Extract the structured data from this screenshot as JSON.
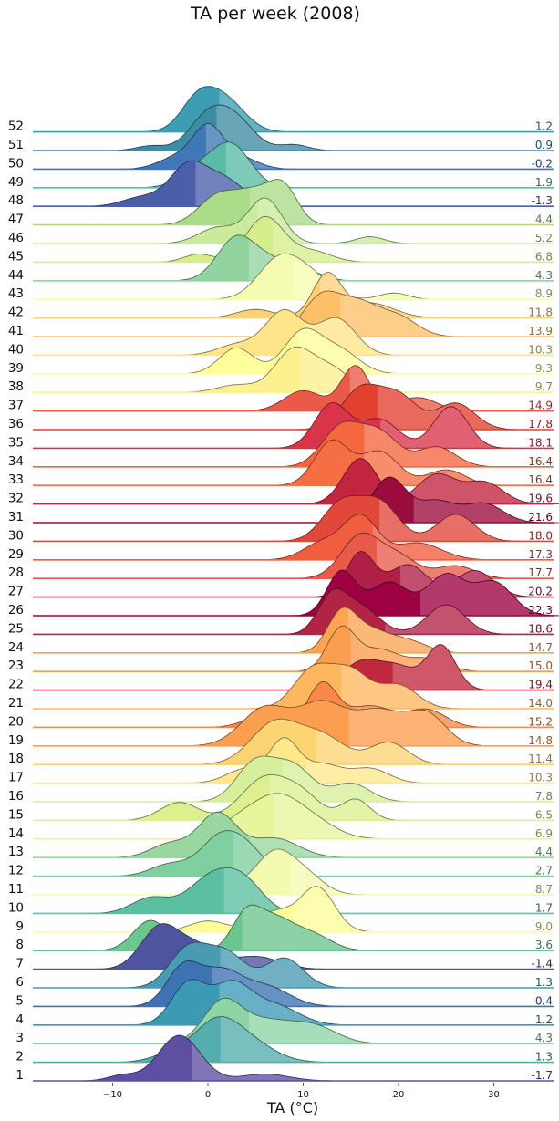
{
  "chart_data": {
    "type": "ridgeline",
    "title": "TA per week (2008)",
    "xlabel": "TA (°C)",
    "ylabel": "",
    "xlim": [
      -18,
      36
    ],
    "xticks": [
      -10,
      0,
      10,
      20,
      30
    ],
    "grid": false,
    "legend": "none",
    "series": [
      {
        "week": "1",
        "mean": -1.7,
        "color": "#5e4fa2",
        "peaks": [
          [
            -3,
            1.0,
            2.2
          ],
          [
            -9,
            0.12,
            1.5
          ],
          [
            6,
            0.15,
            2.5
          ]
        ]
      },
      {
        "week": "2",
        "mean": 1.3,
        "color": "#54aead",
        "peaks": [
          [
            1,
            0.9,
            2.5
          ],
          [
            5,
            0.3,
            2.5
          ],
          [
            -4,
            0.15,
            2.0
          ]
        ]
      },
      {
        "week": "3",
        "mean": 4.3,
        "color": "#8fd4a4",
        "peaks": [
          [
            1.5,
            0.7,
            2.0
          ],
          [
            6,
            0.35,
            2.5
          ],
          [
            11,
            0.3,
            2.5
          ]
        ]
      },
      {
        "week": "4",
        "mean": 1.2,
        "color": "#3d9ab5",
        "peaks": [
          [
            -2,
            0.75,
            1.8
          ],
          [
            2.5,
            0.7,
            2.0
          ],
          [
            7,
            0.35,
            2.5
          ]
        ]
      },
      {
        "week": "5",
        "mean": 0.4,
        "color": "#3e73b3",
        "peaks": [
          [
            -2.5,
            0.7,
            1.8
          ],
          [
            1.5,
            0.55,
            2.0
          ],
          [
            6,
            0.35,
            2.5
          ]
        ]
      },
      {
        "week": "6",
        "mean": 1.3,
        "color": "#4a9ab2",
        "peaks": [
          [
            -2,
            0.6,
            2.0
          ],
          [
            2,
            0.5,
            2.0
          ],
          [
            8,
            0.45,
            2.0
          ]
        ]
      },
      {
        "week": "7",
        "mean": -1.4,
        "color": "#4e549d",
        "peaks": [
          [
            -5,
            1.0,
            2.0
          ],
          [
            -1,
            0.5,
            2.0
          ],
          [
            5,
            0.3,
            2.5
          ]
        ]
      },
      {
        "week": "8",
        "mean": 3.6,
        "color": "#6ec68f",
        "peaks": [
          [
            -6,
            0.5,
            1.8
          ],
          [
            4,
            0.55,
            1.5
          ],
          [
            7,
            0.5,
            2.0
          ],
          [
            11,
            0.25,
            2.0
          ]
        ]
      },
      {
        "week": "9",
        "mean": 9.0,
        "color": "#fdfd9a",
        "peaks": [
          [
            0,
            0.25,
            2.0
          ],
          [
            7,
            0.45,
            2.0
          ],
          [
            11.5,
            1.0,
            1.8
          ]
        ]
      },
      {
        "week": "10",
        "mean": 1.7,
        "color": "#5dbfa1",
        "peaks": [
          [
            0.5,
            0.85,
            2.5
          ],
          [
            4,
            0.55,
            2.0
          ],
          [
            -6,
            0.35,
            2.0
          ]
        ]
      },
      {
        "week": "11",
        "mean": 8.7,
        "color": "#f3fab0",
        "peaks": [
          [
            7,
            0.9,
            1.8
          ],
          [
            10,
            0.55,
            2.0
          ],
          [
            4,
            0.25,
            2.0
          ]
        ]
      },
      {
        "week": "12",
        "mean": 2.7,
        "color": "#7fcf9f",
        "peaks": [
          [
            1,
            0.7,
            2.0
          ],
          [
            4,
            0.55,
            2.0
          ],
          [
            -4,
            0.25,
            2.0
          ]
        ]
      },
      {
        "week": "13",
        "mean": 4.4,
        "color": "#9ad69f",
        "peaks": [
          [
            1,
            0.8,
            2.0
          ],
          [
            7,
            0.35,
            2.5
          ],
          [
            -4,
            0.25,
            2.0
          ]
        ]
      },
      {
        "week": "14",
        "mean": 6.9,
        "color": "#e7f59c",
        "peaks": [
          [
            7,
            0.85,
            2.5
          ],
          [
            11,
            0.35,
            2.5
          ],
          [
            3,
            0.3,
            2.0
          ]
        ]
      },
      {
        "week": "15",
        "mean": 6.5,
        "color": "#dcf08f",
        "peaks": [
          [
            6,
            0.7,
            2.5
          ],
          [
            -3,
            0.3,
            2.0
          ],
          [
            15.5,
            0.35,
            1.5
          ],
          [
            10,
            0.35,
            2.0
          ]
        ]
      },
      {
        "week": "16",
        "mean": 7.8,
        "color": "#d7ef9a",
        "peaks": [
          [
            5,
            0.75,
            2.0
          ],
          [
            9,
            0.65,
            2.0
          ],
          [
            15,
            0.35,
            2.0
          ]
        ]
      },
      {
        "week": "17",
        "mean": 10.3,
        "color": "#fde88c",
        "peaks": [
          [
            8,
            1.0,
            1.5
          ],
          [
            4,
            0.35,
            2.0
          ],
          [
            12,
            0.45,
            2.0
          ],
          [
            17,
            0.35,
            2.0
          ]
        ]
      },
      {
        "week": "18",
        "mean": 11.4,
        "color": "#fdd474",
        "peaks": [
          [
            7,
            0.75,
            2.5
          ],
          [
            12,
            0.5,
            2.5
          ],
          [
            19,
            0.4,
            2.0
          ]
        ]
      },
      {
        "week": "19",
        "mean": 14.8,
        "color": "#fc9e4f",
        "peaks": [
          [
            6,
            0.5,
            2.5
          ],
          [
            12,
            0.55,
            2.5
          ],
          [
            18,
            0.45,
            2.5
          ],
          [
            23,
            0.4,
            2.0
          ]
        ]
      },
      {
        "week": "20",
        "mean": 15.2,
        "color": "#f88948",
        "peaks": [
          [
            12,
            1.0,
            1.5
          ],
          [
            6,
            0.3,
            2.0
          ],
          [
            17,
            0.5,
            2.5
          ],
          [
            23,
            0.4,
            2.0
          ]
        ]
      },
      {
        "week": "21",
        "mean": 14.0,
        "color": "#fdb75f",
        "peaks": [
          [
            11,
            0.75,
            2.0
          ],
          [
            15,
            0.7,
            2.0
          ],
          [
            20,
            0.45,
            2.0
          ]
        ]
      },
      {
        "week": "22",
        "mean": 19.4,
        "color": "#c0283f",
        "peaks": [
          [
            16,
            0.55,
            2.0
          ],
          [
            20,
            0.45,
            2.0
          ],
          [
            24.5,
            0.9,
            1.5
          ]
        ]
      },
      {
        "week": "23",
        "mean": 15.0,
        "color": "#fb9d4e",
        "peaks": [
          [
            14,
            1.0,
            1.5
          ],
          [
            18,
            0.5,
            2.0
          ],
          [
            23,
            0.3,
            2.0
          ]
        ]
      },
      {
        "week": "24",
        "mean": 14.7,
        "color": "#fba452",
        "peaks": [
          [
            14,
            1.0,
            1.5
          ],
          [
            17,
            0.55,
            2.0
          ],
          [
            21,
            0.3,
            2.0
          ]
        ]
      },
      {
        "week": "25",
        "mean": 18.6,
        "color": "#b32346",
        "peaks": [
          [
            13,
            0.6,
            1.5
          ],
          [
            16,
            0.45,
            2.0
          ],
          [
            25,
            0.5,
            2.0
          ]
        ]
      },
      {
        "week": "26",
        "mean": 22.3,
        "color": "#9e0142",
        "peaks": [
          [
            14,
            0.6,
            1.5
          ],
          [
            19,
            0.45,
            2.0
          ],
          [
            25,
            0.55,
            2.0
          ],
          [
            30,
            0.45,
            2.0
          ]
        ]
      },
      {
        "week": "27",
        "mean": 20.2,
        "color": "#b01f48",
        "peaks": [
          [
            16,
            0.75,
            1.5
          ],
          [
            21,
            0.55,
            2.0
          ],
          [
            28,
            0.45,
            2.0
          ]
        ]
      },
      {
        "week": "28",
        "mean": 17.7,
        "color": "#e85b4b",
        "peaks": [
          [
            16,
            1.0,
            2.0
          ],
          [
            20,
            0.5,
            2.0
          ],
          [
            26,
            0.3,
            2.0
          ]
        ]
      },
      {
        "week": "29",
        "mean": 17.3,
        "color": "#f15d3f",
        "peaks": [
          [
            16,
            1.0,
            1.8
          ],
          [
            12,
            0.4,
            2.0
          ],
          [
            22,
            0.4,
            2.5
          ]
        ]
      },
      {
        "week": "30",
        "mean": 18.0,
        "color": "#e2473c",
        "peaks": [
          [
            14,
            0.7,
            2.0
          ],
          [
            18,
            0.7,
            2.0
          ],
          [
            26,
            0.5,
            2.0
          ]
        ]
      },
      {
        "week": "31",
        "mean": 21.6,
        "color": "#9a0b3e",
        "peaks": [
          [
            19,
            0.95,
            1.8
          ],
          [
            24,
            0.45,
            2.0
          ],
          [
            29,
            0.4,
            2.0
          ]
        ]
      },
      {
        "week": "32",
        "mean": 19.6,
        "color": "#c3243f",
        "peaks": [
          [
            16,
            0.85,
            1.8
          ],
          [
            24,
            0.55,
            2.0
          ],
          [
            29,
            0.4,
            2.0
          ]
        ]
      },
      {
        "week": "33",
        "mean": 16.4,
        "color": "#f56e44",
        "peaks": [
          [
            13,
            0.85,
            1.8
          ],
          [
            18,
            0.65,
            2.0
          ],
          [
            25,
            0.3,
            2.0
          ]
        ]
      },
      {
        "week": "34",
        "mean": 16.4,
        "color": "#f4673f",
        "peaks": [
          [
            14,
            0.6,
            2.0
          ],
          [
            18,
            0.5,
            2.0
          ],
          [
            24,
            0.3,
            2.0
          ]
        ]
      },
      {
        "week": "35",
        "mean": 18.1,
        "color": "#d9344a",
        "peaks": [
          [
            13,
            0.85,
            1.8
          ],
          [
            18,
            0.55,
            2.0
          ],
          [
            25.5,
            0.8,
            1.8
          ]
        ]
      },
      {
        "week": "36",
        "mean": 17.8,
        "color": "#e3412f",
        "peaks": [
          [
            16,
            0.6,
            2.0
          ],
          [
            20,
            0.5,
            2.0
          ],
          [
            26,
            0.4,
            2.0
          ]
        ]
      },
      {
        "week": "37",
        "mean": 14.9,
        "color": "#e95b48",
        "peaks": [
          [
            15.5,
            1.0,
            1.5
          ],
          [
            10,
            0.45,
            2.0
          ],
          [
            22,
            0.3,
            2.0
          ]
        ]
      },
      {
        "week": "38",
        "mean": 9.7,
        "color": "#fdf08f",
        "peaks": [
          [
            9,
            0.85,
            2.0
          ],
          [
            13,
            0.45,
            2.0
          ],
          [
            3,
            0.15,
            2.0
          ]
        ]
      },
      {
        "week": "39",
        "mean": 9.3,
        "color": "#fefe9b",
        "peaks": [
          [
            3,
            0.55,
            1.8
          ],
          [
            10,
            0.9,
            2.0
          ],
          [
            14,
            0.45,
            2.0
          ]
        ]
      },
      {
        "week": "40",
        "mean": 10.3,
        "color": "#fee58a",
        "peaks": [
          [
            8,
            0.85,
            2.0
          ],
          [
            13.5,
            0.7,
            2.0
          ],
          [
            3,
            0.2,
            2.0
          ]
        ]
      },
      {
        "week": "41",
        "mean": 13.9,
        "color": "#fdc068",
        "peaks": [
          [
            12,
            0.75,
            2.0
          ],
          [
            16,
            0.55,
            2.0
          ],
          [
            20,
            0.35,
            2.0
          ]
        ]
      },
      {
        "week": "42",
        "mean": 11.8,
        "color": "#fed07c",
        "peaks": [
          [
            12.5,
            1.0,
            1.5
          ],
          [
            5,
            0.2,
            2.0
          ],
          [
            17,
            0.35,
            2.5
          ]
        ]
      },
      {
        "week": "43",
        "mean": 8.9,
        "color": "#f5fbb0",
        "peaks": [
          [
            7.5,
            0.95,
            2.2
          ],
          [
            11,
            0.45,
            2.0
          ],
          [
            19.5,
            0.15,
            1.5
          ]
        ]
      },
      {
        "week": "44",
        "mean": 4.3,
        "color": "#92d3a0",
        "peaks": [
          [
            3,
            0.95,
            2.0
          ],
          [
            7,
            0.4,
            2.0
          ],
          [
            11,
            0.15,
            1.5
          ]
        ]
      },
      {
        "week": "45",
        "mean": 6.8,
        "color": "#d5ee8b",
        "peaks": [
          [
            6,
            0.85,
            2.0
          ],
          [
            -1,
            0.15,
            1.5
          ],
          [
            11,
            0.2,
            2.0
          ]
        ]
      },
      {
        "week": "46",
        "mean": 5.2,
        "color": "#c9eb9b",
        "peaks": [
          [
            6,
            1.0,
            1.8
          ],
          [
            1,
            0.35,
            2.0
          ],
          [
            17,
            0.15,
            1.5
          ]
        ]
      },
      {
        "week": "47",
        "mean": 4.4,
        "color": "#abdc8a",
        "peaks": [
          [
            1,
            0.55,
            2.0
          ],
          [
            5,
            0.6,
            2.0
          ],
          [
            8,
            0.65,
            1.5
          ]
        ]
      },
      {
        "week": "48",
        "mean": -1.3,
        "color": "#4b5fa9",
        "peaks": [
          [
            -2,
            0.95,
            2.0
          ],
          [
            2,
            0.55,
            2.0
          ],
          [
            -7,
            0.2,
            2.0
          ]
        ]
      },
      {
        "week": "49",
        "mean": 1.9,
        "color": "#59bba5",
        "peaks": [
          [
            2.5,
            0.95,
            2.0
          ],
          [
            -1,
            0.4,
            2.0
          ]
        ]
      },
      {
        "week": "50",
        "mean": -0.2,
        "color": "#3f77b7",
        "peaks": [
          [
            0,
            1.0,
            1.5
          ],
          [
            -3,
            0.35,
            2.0
          ],
          [
            3,
            0.35,
            2.0
          ]
        ]
      },
      {
        "week": "51",
        "mean": 0.9,
        "color": "#3d8ca3",
        "peaks": [
          [
            0,
            0.85,
            2.0
          ],
          [
            3,
            0.7,
            2.0
          ],
          [
            -6,
            0.12,
            1.5
          ],
          [
            9,
            0.15,
            1.5
          ]
        ]
      },
      {
        "week": "52",
        "mean": 1.2,
        "color": "#3d9db3",
        "peaks": [
          [
            -1,
            0.9,
            1.8
          ],
          [
            2,
            0.8,
            2.0
          ]
        ]
      }
    ]
  }
}
